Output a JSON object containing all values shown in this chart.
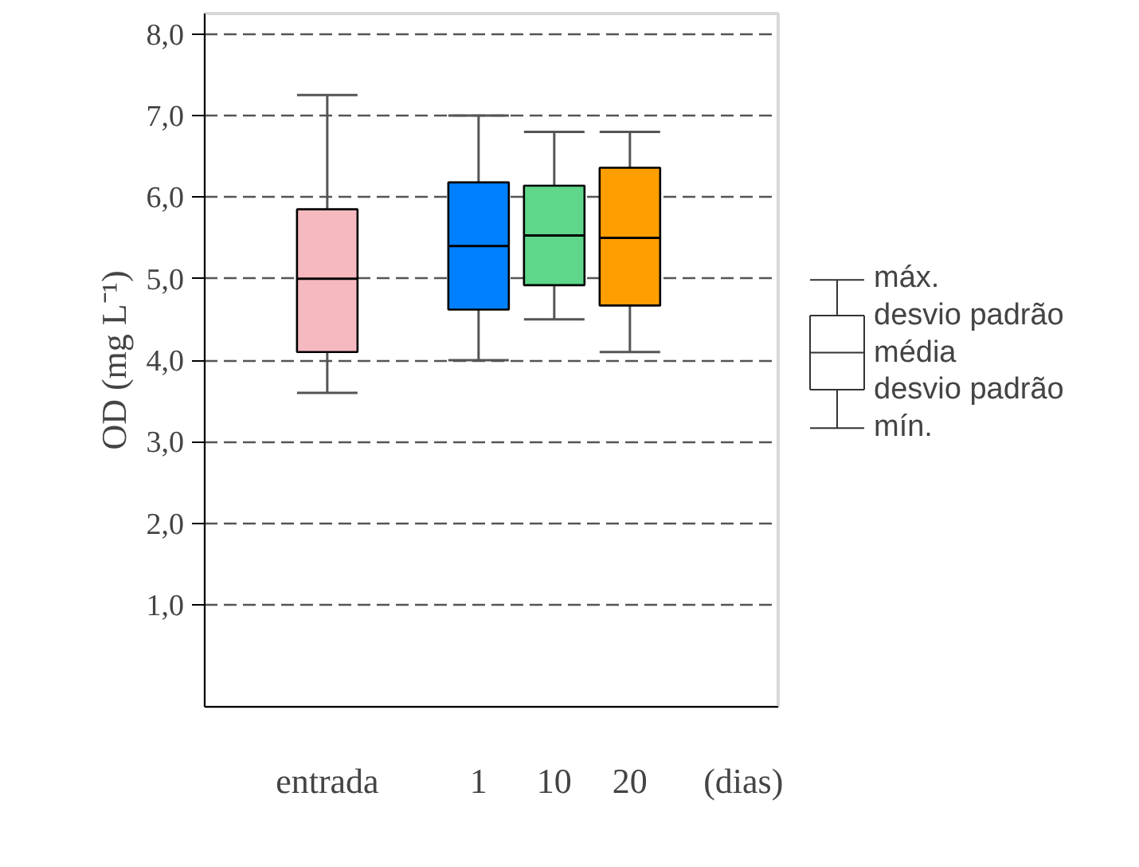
{
  "chart_data": {
    "type": "box",
    "ylabel": "OD (mg L⁻¹)",
    "xlabel": "(dias)",
    "categories": [
      "entrada",
      null,
      "1",
      "10",
      "20"
    ],
    "colors": [
      "#f7b9c0",
      null,
      "#0080ff",
      "#5fd68a",
      "#ff9e00"
    ],
    "boxes": [
      {
        "low": 3.6,
        "q1": 4.1,
        "median": 5.0,
        "q3": 5.85,
        "high": 7.25
      },
      null,
      {
        "low": 4.0,
        "q1": 4.62,
        "median": 5.4,
        "q3": 6.18,
        "high": 7.0
      },
      {
        "low": 4.5,
        "q1": 4.92,
        "median": 5.53,
        "q3": 6.14,
        "high": 6.8
      },
      {
        "low": 4.1,
        "q1": 4.67,
        "median": 5.5,
        "q3": 6.36,
        "high": 6.8
      }
    ],
    "ylim": [
      -0.25,
      8.25
    ],
    "yticks": [
      {
        "value": 1,
        "label": "1,0"
      },
      {
        "value": 2,
        "label": "2,0"
      },
      {
        "value": 3,
        "label": "3,0"
      },
      {
        "value": 4,
        "label": "4,0"
      },
      {
        "value": 5,
        "label": "5,0"
      },
      {
        "value": 6,
        "label": "6,0"
      },
      {
        "value": 7,
        "label": "7,0"
      },
      {
        "value": 8,
        "label": "8,0"
      }
    ],
    "grid": "y",
    "annotations": [
      "máx.",
      "desvio padrão",
      "média",
      "desvio padrão",
      "mín."
    ]
  }
}
